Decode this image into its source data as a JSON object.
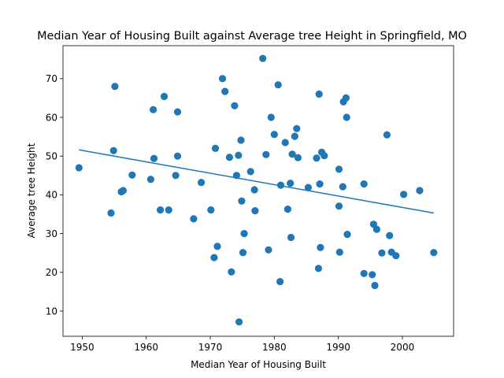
{
  "chart_data": {
    "type": "scatter",
    "title": "Median Year of Housing Built against Average tree Height in Springfield, MO",
    "xlabel": "Median Year of Housing Built",
    "ylabel": "Average tree Height",
    "xlim": [
      1947,
      2008
    ],
    "ylim": [
      3.5,
      78.5
    ],
    "x_ticks": [
      1950,
      1960,
      1970,
      1980,
      1990,
      2000
    ],
    "y_ticks": [
      10,
      20,
      30,
      40,
      50,
      60,
      70
    ],
    "grid": false,
    "legend": "none",
    "point_color": "#1f77b4",
    "line_color": "#1f77b4",
    "points": [
      [
        1949.5,
        47.0
      ],
      [
        1954.5,
        35.3
      ],
      [
        1954.9,
        51.4
      ],
      [
        1955.1,
        68.0
      ],
      [
        1956.1,
        40.8
      ],
      [
        1956.4,
        41.1
      ],
      [
        1957.8,
        45.1
      ],
      [
        1960.7,
        44.0
      ],
      [
        1961.1,
        62.0
      ],
      [
        1961.2,
        49.4
      ],
      [
        1962.2,
        36.1
      ],
      [
        1962.8,
        65.4
      ],
      [
        1963.5,
        36.1
      ],
      [
        1964.6,
        45.0
      ],
      [
        1964.9,
        61.4
      ],
      [
        1964.9,
        50.0
      ],
      [
        1967.4,
        33.8
      ],
      [
        1968.6,
        43.2
      ],
      [
        1970.1,
        36.1
      ],
      [
        1970.6,
        23.8
      ],
      [
        1970.8,
        52.0
      ],
      [
        1971.1,
        26.7
      ],
      [
        1971.9,
        70.0
      ],
      [
        1972.3,
        66.7
      ],
      [
        1973.0,
        49.7
      ],
      [
        1973.3,
        20.1
      ],
      [
        1973.8,
        63.0
      ],
      [
        1974.1,
        45.0
      ],
      [
        1974.4,
        50.2
      ],
      [
        1974.5,
        7.2
      ],
      [
        1974.8,
        54.1
      ],
      [
        1974.9,
        38.4
      ],
      [
        1975.1,
        25.1
      ],
      [
        1975.3,
        30.0
      ],
      [
        1976.3,
        46.0
      ],
      [
        1976.9,
        41.3
      ],
      [
        1977.0,
        35.9
      ],
      [
        1978.2,
        75.2
      ],
      [
        1978.7,
        50.4
      ],
      [
        1979.1,
        25.8
      ],
      [
        1979.5,
        60.0
      ],
      [
        1980.0,
        55.6
      ],
      [
        1980.6,
        68.4
      ],
      [
        1980.9,
        17.6
      ],
      [
        1981.0,
        42.5
      ],
      [
        1981.7,
        53.5
      ],
      [
        1982.1,
        36.3
      ],
      [
        1982.5,
        43.0
      ],
      [
        1982.6,
        29.0
      ],
      [
        1982.8,
        50.5
      ],
      [
        1983.2,
        55.1
      ],
      [
        1983.5,
        57.1
      ],
      [
        1983.7,
        49.6
      ],
      [
        1985.3,
        41.9
      ],
      [
        1986.6,
        49.5
      ],
      [
        1986.9,
        21.0
      ],
      [
        1987.0,
        66.0
      ],
      [
        1987.1,
        42.8
      ],
      [
        1987.2,
        26.4
      ],
      [
        1987.4,
        51.0
      ],
      [
        1987.8,
        50.1
      ],
      [
        1990.1,
        46.6
      ],
      [
        1990.1,
        37.1
      ],
      [
        1990.2,
        25.2
      ],
      [
        1990.7,
        42.1
      ],
      [
        1990.8,
        64.0
      ],
      [
        1991.2,
        65.0
      ],
      [
        1991.3,
        60.0
      ],
      [
        1991.4,
        29.8
      ],
      [
        1994.0,
        19.7
      ],
      [
        1994.0,
        42.8
      ],
      [
        1995.3,
        19.4
      ],
      [
        1995.5,
        32.4
      ],
      [
        1995.7,
        16.6
      ],
      [
        1996.0,
        31.1
      ],
      [
        1996.8,
        25.0
      ],
      [
        1997.6,
        55.5
      ],
      [
        1998.0,
        29.5
      ],
      [
        1998.3,
        25.2
      ],
      [
        1999.0,
        24.3
      ],
      [
        2000.2,
        40.1
      ],
      [
        2002.7,
        41.1
      ],
      [
        2004.9,
        25.1
      ]
    ],
    "trendline": {
      "x": [
        1949.5,
        2004.9
      ],
      "y": [
        51.6,
        35.3
      ]
    }
  }
}
